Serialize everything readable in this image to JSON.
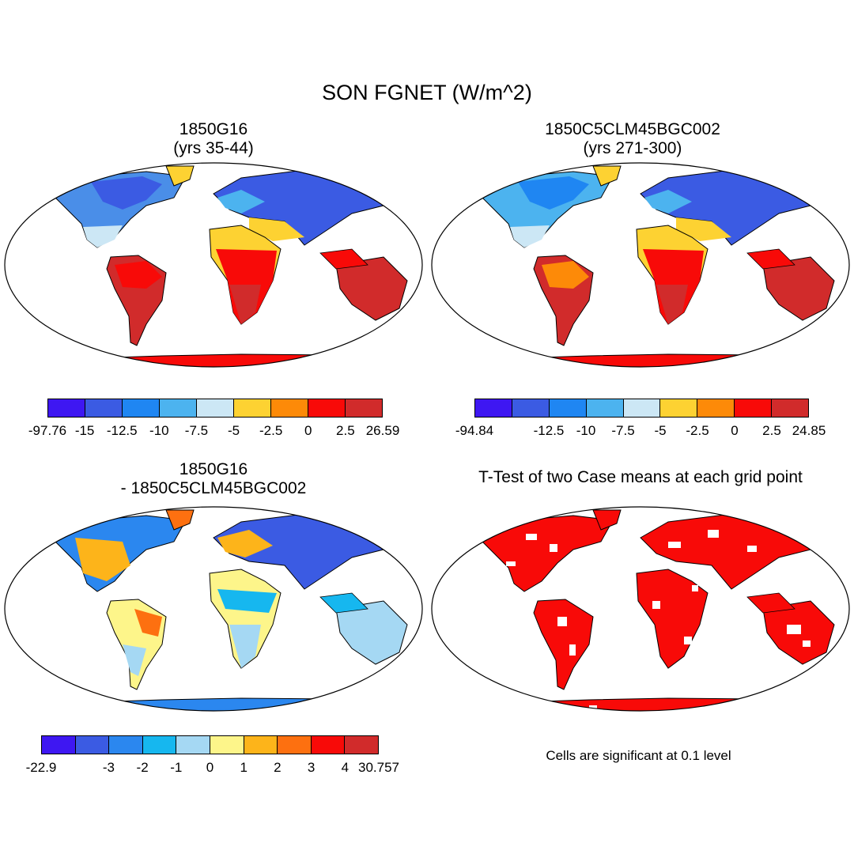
{
  "title": "SON FGNET (W/m^2)",
  "panels": [
    {
      "id": "p1",
      "title_line1": "1850G16",
      "title_line2": "(yrs 35-44)",
      "colors": [
        "#3e17f2",
        "#3b5be3",
        "#1f86f2",
        "#4cb3ef",
        "#cce7f5",
        "#fdd232",
        "#fd8a08",
        "#f80a08",
        "#d12b2b"
      ],
      "tick_labels": [
        "-97.76",
        "-15",
        "-12.5",
        "-10",
        "-7.5",
        "-5",
        "-2.5",
        "0",
        "2.5",
        "26.59"
      ]
    },
    {
      "id": "p2",
      "title_line1": "1850C5CLM45BGC002",
      "title_line2": "(yrs 271-300)",
      "colors": [
        "#3e17f2",
        "#3b5be3",
        "#1f86f2",
        "#4cb3ef",
        "#cce7f5",
        "#fdd232",
        "#fd8a08",
        "#f80a08",
        "#d12b2b"
      ],
      "tick_labels": [
        "-94.84",
        "",
        "-12.5",
        "-10",
        "-7.5",
        "-5",
        "-2.5",
        "0",
        "2.5",
        "24.85"
      ]
    },
    {
      "id": "p3",
      "title_line1": "1850G16",
      "title_line2": "- 1850C5CLM45BGC002",
      "colors": [
        "#3e17f2",
        "#3b5be3",
        "#2b87ef",
        "#16b7ef",
        "#a5d8f3",
        "#fdf58a",
        "#fdb41a",
        "#fd7010",
        "#f80a08",
        "#d12b2b"
      ],
      "tick_labels": [
        "-22.9",
        "",
        "-3",
        "-2",
        "-1",
        "0",
        "1",
        "2",
        "3",
        "4",
        "30.757"
      ]
    },
    {
      "id": "p4",
      "title_line1": "T-Test of two Case means at each grid point",
      "title_line2": "",
      "note": "Cells are significant at 0.1 level"
    }
  ]
}
